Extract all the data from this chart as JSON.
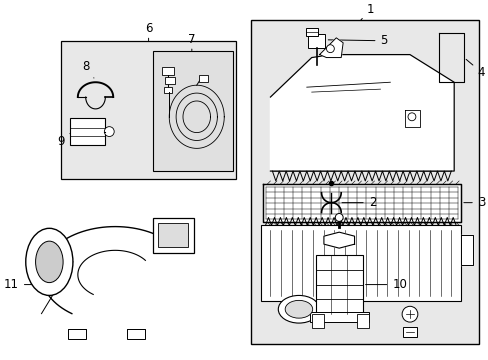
{
  "bg_color": "#ffffff",
  "fig_width": 4.89,
  "fig_height": 3.6,
  "dpi": 100,
  "line_color": "#000000",
  "label_fontsize": 8.5,
  "box_fill": "#e8e8e8",
  "white": "#ffffff"
}
